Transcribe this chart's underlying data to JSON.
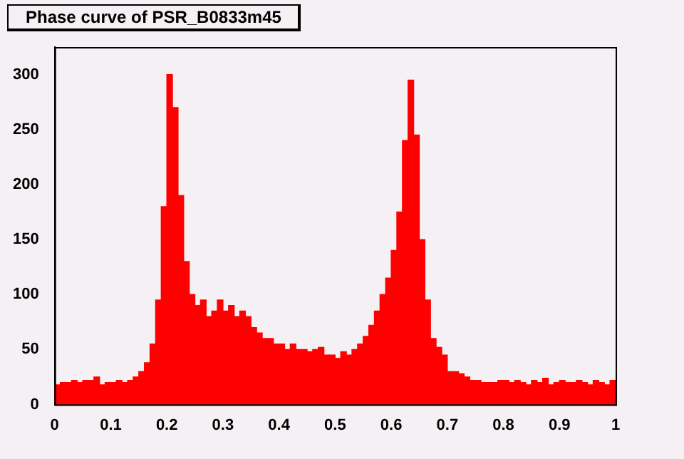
{
  "chart_data": {
    "type": "histogram",
    "title": "Phase curve of PSR_B0833m45",
    "bins": [
      0,
      0.01,
      0.02,
      0.03,
      0.04,
      0.05,
      0.06,
      0.07,
      0.08,
      0.09,
      0.1,
      0.11,
      0.12,
      0.13,
      0.14,
      0.15,
      0.16,
      0.17,
      0.18,
      0.19,
      0.2,
      0.21,
      0.22,
      0.23,
      0.24,
      0.25,
      0.26,
      0.27,
      0.28,
      0.29,
      0.3,
      0.31,
      0.32,
      0.33,
      0.34,
      0.35,
      0.36,
      0.37,
      0.38,
      0.39,
      0.4,
      0.41,
      0.42,
      0.43,
      0.44,
      0.45,
      0.46,
      0.47,
      0.48,
      0.49,
      0.5,
      0.51,
      0.52,
      0.53,
      0.54,
      0.55,
      0.56,
      0.57,
      0.58,
      0.59,
      0.6,
      0.61,
      0.62,
      0.63,
      0.64,
      0.65,
      0.66,
      0.67,
      0.68,
      0.69,
      0.7,
      0.71,
      0.72,
      0.73,
      0.74,
      0.75,
      0.76,
      0.77,
      0.78,
      0.79,
      0.8,
      0.81,
      0.82,
      0.83,
      0.84,
      0.85,
      0.86,
      0.87,
      0.88,
      0.89,
      0.9,
      0.91,
      0.92,
      0.93,
      0.94,
      0.95,
      0.96,
      0.97,
      0.98,
      0.99,
      1
    ],
    "values": [
      18,
      20,
      20,
      22,
      20,
      22,
      22,
      25,
      18,
      20,
      20,
      22,
      20,
      22,
      25,
      30,
      38,
      55,
      95,
      180,
      300,
      270,
      190,
      130,
      100,
      90,
      95,
      80,
      85,
      95,
      85,
      90,
      80,
      85,
      80,
      70,
      65,
      60,
      60,
      55,
      55,
      50,
      55,
      50,
      50,
      48,
      50,
      52,
      45,
      45,
      42,
      48,
      45,
      50,
      55,
      62,
      72,
      85,
      100,
      115,
      140,
      175,
      240,
      295,
      245,
      150,
      95,
      60,
      52,
      45,
      30,
      30,
      28,
      25,
      22,
      22,
      20,
      20,
      20,
      22,
      22,
      20,
      22,
      20,
      18,
      22,
      20,
      24,
      18,
      20,
      22,
      20,
      20,
      22,
      20,
      18,
      22,
      20,
      18,
      22
    ],
    "color": "#ff0000",
    "xlim": [
      0,
      1
    ],
    "xticks": [
      0,
      0.1,
      0.2,
      0.3,
      0.4,
      0.5,
      0.6,
      0.7,
      0.8,
      0.9,
      1
    ],
    "ylim": [
      0,
      325
    ],
    "yticks": [
      0,
      50,
      100,
      150,
      200,
      250,
      300
    ],
    "grid": false,
    "legend": false
  }
}
